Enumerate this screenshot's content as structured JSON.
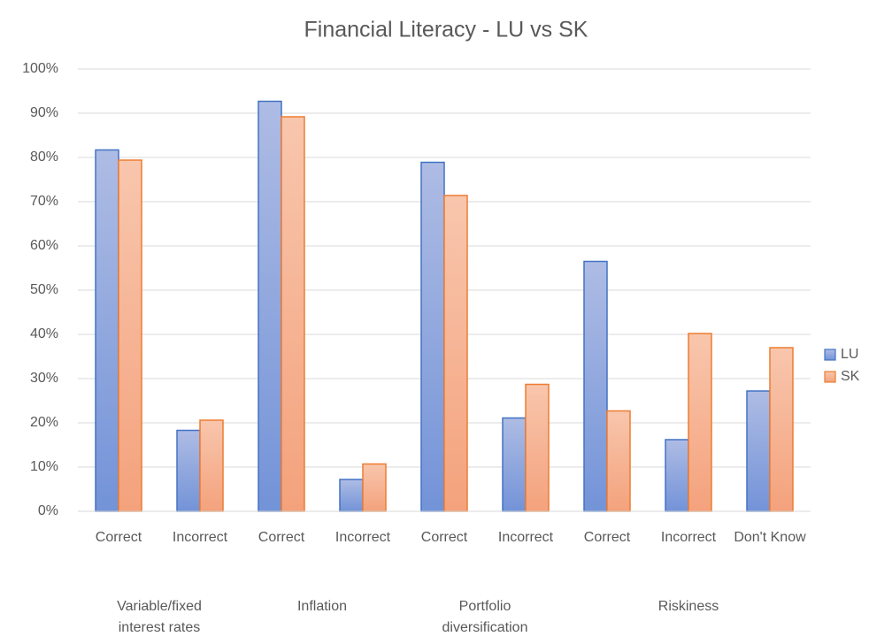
{
  "chart_data": {
    "type": "bar",
    "title": "Financial Literacy - LU vs SK",
    "groups": [
      {
        "name": "Variable/fixed interest rates",
        "categories": [
          "Correct",
          "Incorrect"
        ]
      },
      {
        "name": "Inflation",
        "categories": [
          "Correct",
          "Incorrect"
        ]
      },
      {
        "name": "Portfolio diversification",
        "categories": [
          "Correct",
          "Incorrect"
        ]
      },
      {
        "name": "Riskiness",
        "categories": [
          "Correct",
          "Incorrect",
          "Don't Know"
        ]
      }
    ],
    "series": [
      {
        "name": "LU",
        "color": "#4472c4",
        "values": [
          81.7,
          18.3,
          92.7,
          7.2,
          78.9,
          21.1,
          56.5,
          16.2,
          27.2
        ]
      },
      {
        "name": "SK",
        "color": "#ed7d31",
        "values": [
          79.4,
          20.6,
          89.2,
          10.7,
          71.4,
          28.7,
          22.7,
          40.2,
          37.0
        ]
      }
    ],
    "ylim": [
      0,
      100
    ],
    "yticks": [
      {
        "value": 0,
        "label": "0%"
      },
      {
        "value": 10,
        "label": "10%"
      },
      {
        "value": 20,
        "label": "20%"
      },
      {
        "value": 30,
        "label": "30%"
      },
      {
        "value": 40,
        "label": "40%"
      },
      {
        "value": 50,
        "label": "50%"
      },
      {
        "value": 60,
        "label": "60%"
      },
      {
        "value": 70,
        "label": "70%"
      },
      {
        "value": 80,
        "label": "80%"
      },
      {
        "value": 90,
        "label": "90%"
      },
      {
        "value": 100,
        "label": "100%"
      }
    ],
    "grid": true,
    "legend": "right"
  }
}
